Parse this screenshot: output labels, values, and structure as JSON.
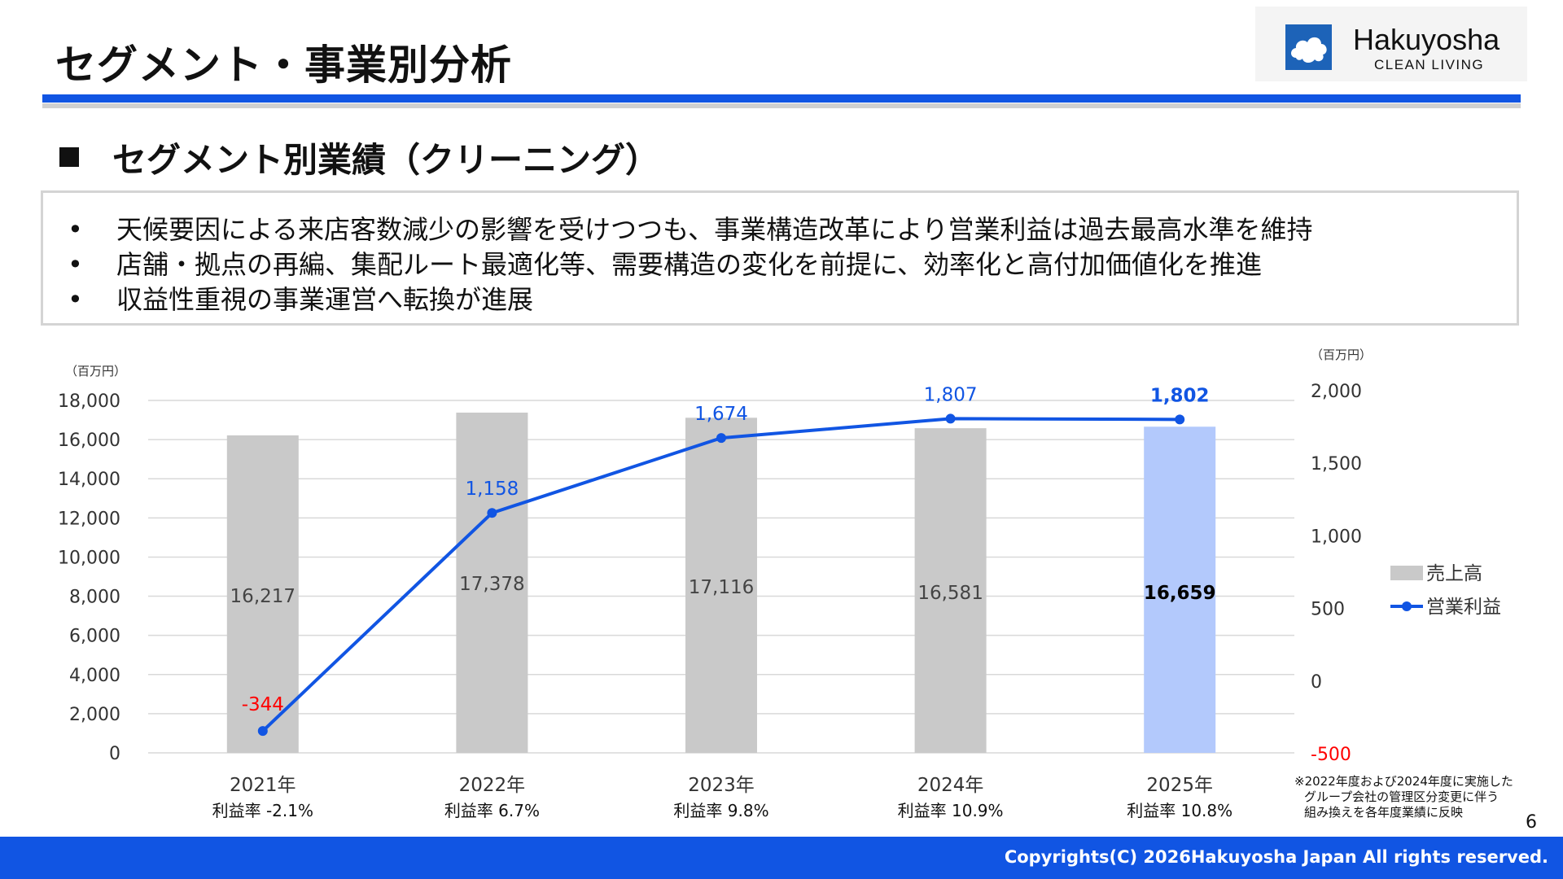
{
  "page": {
    "title": "セグメント・事業別分析",
    "section_title": "セグメント別業績（クリーニング）",
    "bullets": [
      "天候要因による来店客数減少の影響を受けつつも、事業構造改革により営業利益は過去最高水準を維持",
      "店舗・拠点の再編、集配ルート最適化等、需要構造の変化を前提に、効率化と高付加価値化を推進",
      "収益性重視の事業運営へ転換が進展"
    ],
    "bullet_symbol": "•",
    "note_lines": [
      "※2022年度および2024年度に実施した",
      "グループ会社の管理区分変更に伴う",
      "組み換えを各年度業績に反映"
    ],
    "page_number": "6",
    "copyright": "Copyrights(C) 2026Hakuyosha Japan All rights reserved."
  },
  "logo": {
    "name": "Hakuyosha",
    "tagline": "CLEAN LIVING",
    "icon": "cloud-logo-icon",
    "color": "#1d63b8"
  },
  "colors": {
    "accent_blue": "#1155e3",
    "bar_gray": "#c9c9c9",
    "bar_highlight": "#b3c9fc",
    "line_blue": "#1155e3",
    "negative_red": "#ff0000",
    "grid": "#d9d9d9"
  },
  "chart_data": {
    "type": "bar+line",
    "categories": [
      "2021年",
      "2022年",
      "2023年",
      "2024年",
      "2025年"
    ],
    "category_sublabels": [
      "利益率  -2.1%",
      "利益率  6.7%",
      "利益率  9.8%",
      "利益率  10.9%",
      "利益率  10.8%"
    ],
    "series": [
      {
        "name": "売上高",
        "type": "bar",
        "axis": "left",
        "values": [
          16217,
          17378,
          17116,
          16581,
          16659
        ],
        "labels": [
          "16,217",
          "17,378",
          "17,116",
          "16,581",
          "16,659"
        ],
        "highlight_index": 4
      },
      {
        "name": "営業利益",
        "type": "line",
        "axis": "right",
        "values": [
          -344,
          1158,
          1674,
          1807,
          1802
        ],
        "labels": [
          "-344",
          "1,158",
          "1,674",
          "1,807",
          "1,802"
        ]
      }
    ],
    "left_axis": {
      "unit": "（百万円）",
      "ylim": [
        0,
        18000
      ],
      "ticks": [
        0,
        2000,
        4000,
        6000,
        8000,
        10000,
        12000,
        14000,
        16000,
        18000
      ],
      "tick_labels": [
        "0",
        "2,000",
        "4,000",
        "6,000",
        "8,000",
        "10,000",
        "12,000",
        "14,000",
        "16,000",
        "18,000"
      ]
    },
    "right_axis": {
      "unit": "（百万円）",
      "ylim": [
        -500,
        2000
      ],
      "ticks": [
        -500,
        0,
        500,
        1000,
        1500,
        2000
      ],
      "tick_labels": [
        "-500",
        "0",
        "500",
        "1,000",
        "1,500",
        "2,000"
      ]
    },
    "grid": true,
    "legend_position": "right"
  }
}
